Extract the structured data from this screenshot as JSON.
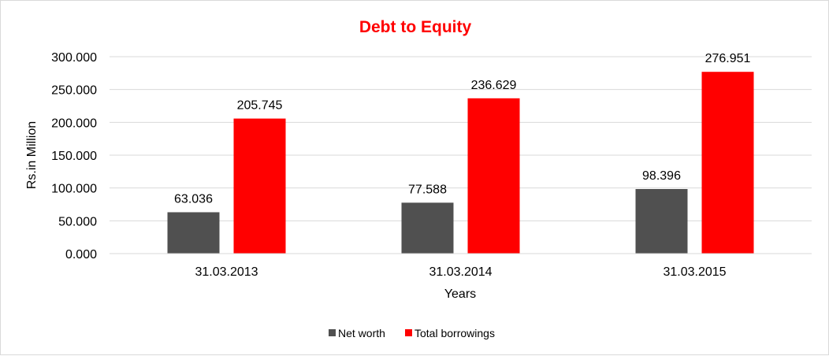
{
  "chart_data": {
    "type": "bar",
    "title": "Debt to Equity",
    "xlabel": "Years",
    "ylabel": "Rs.in Million",
    "categories": [
      "31.03.2013",
      "31.03.2014",
      "31.03.2015"
    ],
    "series": [
      {
        "name": "Net worth",
        "color": "#505050",
        "values": [
          63.036,
          77.588,
          98.396
        ]
      },
      {
        "name": "Total borrowings",
        "color": "#ff0000",
        "values": [
          205.745,
          236.629,
          276.951
        ]
      }
    ],
    "ylim": [
      0,
      300
    ],
    "yticks": [
      "0.000",
      "50.000",
      "100.000",
      "150.000",
      "200.000",
      "250.000",
      "300.000"
    ],
    "data_labels": [
      [
        "63.036",
        "77.588",
        "98.396"
      ],
      [
        "205.745",
        "236.629",
        "276.951"
      ]
    ],
    "grid": true,
    "legend_position": "bottom",
    "title_color": "#ff0000"
  }
}
